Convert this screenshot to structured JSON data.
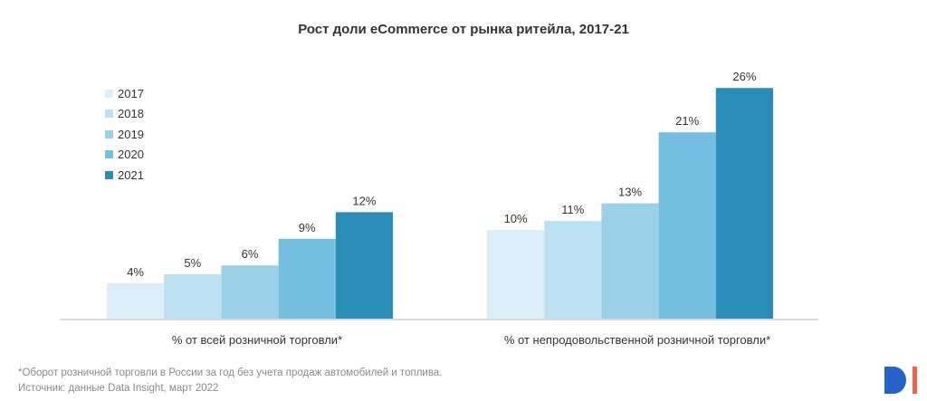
{
  "chart_data": {
    "type": "bar",
    "title": "Рост доли eCommerce от рынка ритейла, 2017-21",
    "xlabel": "",
    "ylabel": "",
    "ylim": [
      0,
      27
    ],
    "grid": false,
    "legend_position": "top-left",
    "categories": [
      "% от всей розничной торговли*",
      "% от непродовольственной розничной торговли*"
    ],
    "series": [
      {
        "name": "2017",
        "color": "#DCEEF7",
        "values": [
          4,
          10
        ],
        "labels": [
          "4%",
          "10%"
        ]
      },
      {
        "name": "2018",
        "color": "#BBE0F1",
        "values": [
          5,
          11
        ],
        "labels": [
          "5%",
          "11%"
        ]
      },
      {
        "name": "2019",
        "color": "#9BD0E9",
        "values": [
          6,
          13
        ],
        "labels": [
          "6%",
          "13%"
        ]
      },
      {
        "name": "2020",
        "color": "#74BFE0",
        "values": [
          9,
          21
        ],
        "labels": [
          "9%",
          "21%"
        ]
      },
      {
        "name": "2021",
        "color": "#2A8DB8",
        "values": [
          12,
          26
        ],
        "labels": [
          "12%",
          "26%"
        ]
      }
    ]
  },
  "footnotes": {
    "note": "*Оборот розничной торговли в России за год без учета продаж автомобилей и топлива.",
    "source": "Источник: данные Data Insight, март 2022"
  },
  "logo": {
    "name": "Data Insight logo",
    "colors": {
      "d": "#2563C9",
      "i": "#F4604A"
    }
  }
}
